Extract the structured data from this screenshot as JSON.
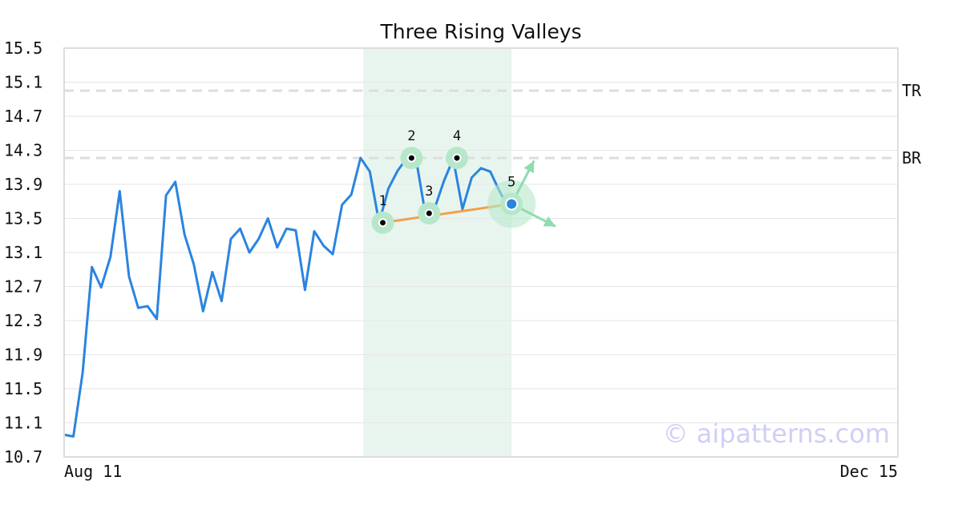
{
  "chart_data": {
    "type": "line",
    "title": "Three Rising Valleys",
    "watermark": "© aipatterns.com",
    "ylim": [
      10.7,
      15.5
    ],
    "y_ticks": [
      "15.5",
      "15.1",
      "14.7",
      "14.3",
      "13.9",
      "13.5",
      "13.1",
      "12.7",
      "12.3",
      "11.9",
      "11.5",
      "11.1",
      "10.7"
    ],
    "x_labels": [
      "Aug 11",
      "Dec 15"
    ],
    "x_range": [
      0,
      90
    ],
    "grid": true,
    "colors": {
      "price": "#2a84e0",
      "trend": "#f2a04a",
      "highlight": "#e8f5ef",
      "point_halo": "#b7e7cb",
      "arrow": "#8fdcb0",
      "ref_line": "#dddddd"
    },
    "series": [
      {
        "values": [
          10.96,
          10.94,
          11.69,
          12.93,
          12.69,
          13.05,
          13.82,
          12.82,
          12.45,
          12.47,
          12.32,
          13.77,
          13.93,
          13.31,
          12.96,
          12.41,
          12.87,
          12.53,
          13.26,
          13.38,
          13.1,
          13.26,
          13.5,
          13.16,
          13.38,
          13.36,
          12.66,
          13.35,
          13.18,
          13.08,
          13.66,
          13.78,
          14.21,
          14.05,
          13.45,
          13.85,
          14.06,
          14.21,
          14.19,
          13.55,
          13.62,
          13.94,
          14.2,
          13.61,
          13.98,
          14.09,
          14.05,
          13.82,
          13.62
        ]
      }
    ],
    "reference_lines": [
      {
        "label": "TR",
        "value": 15.0
      },
      {
        "label": "BR",
        "value": 14.21
      }
    ],
    "highlight_range": [
      32.3,
      48.3
    ],
    "pattern_points": [
      {
        "label": "1",
        "x": 34.4,
        "y": 13.45
      },
      {
        "label": "2",
        "x": 37.5,
        "y": 14.21
      },
      {
        "label": "3",
        "x": 39.4,
        "y": 13.56
      },
      {
        "label": "4",
        "x": 42.4,
        "y": 14.21
      },
      {
        "label": "5",
        "x": 48.3,
        "y": 13.67
      }
    ],
    "trend_line": {
      "from": [
        34.4,
        13.45
      ],
      "to": [
        48.3,
        13.67
      ]
    }
  }
}
